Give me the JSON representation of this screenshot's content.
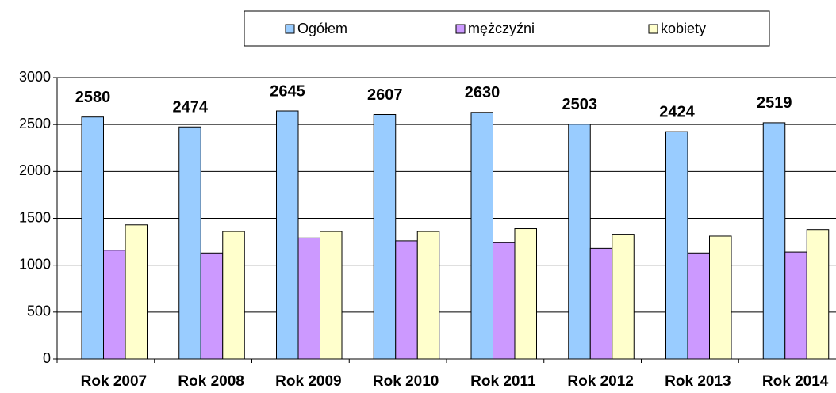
{
  "chart_data": {
    "type": "bar",
    "categories": [
      "Rok 2007",
      "Rok 2008",
      "Rok 2009",
      "Rok 2010",
      "Rok 2011",
      "Rok 2012",
      "Rok 2013",
      "Rok 2014"
    ],
    "series": [
      {
        "name": "Ogółem",
        "color": "#99ccff",
        "values": [
          2580,
          2474,
          2645,
          2607,
          2630,
          2503,
          2424,
          2519
        ]
      },
      {
        "name": "mężczyźni",
        "color": "#cc99ff",
        "values": [
          1160,
          1130,
          1290,
          1260,
          1240,
          1180,
          1130,
          1140
        ]
      },
      {
        "name": "kobiety",
        "color": "#ffffcc",
        "values": [
          1430,
          1360,
          1360,
          1360,
          1390,
          1330,
          1310,
          1380
        ]
      }
    ],
    "ylim": [
      0,
      3000
    ],
    "yticks": [
      0,
      500,
      1000,
      1500,
      2000,
      2500,
      3000
    ],
    "grid": true,
    "legend": "top"
  }
}
